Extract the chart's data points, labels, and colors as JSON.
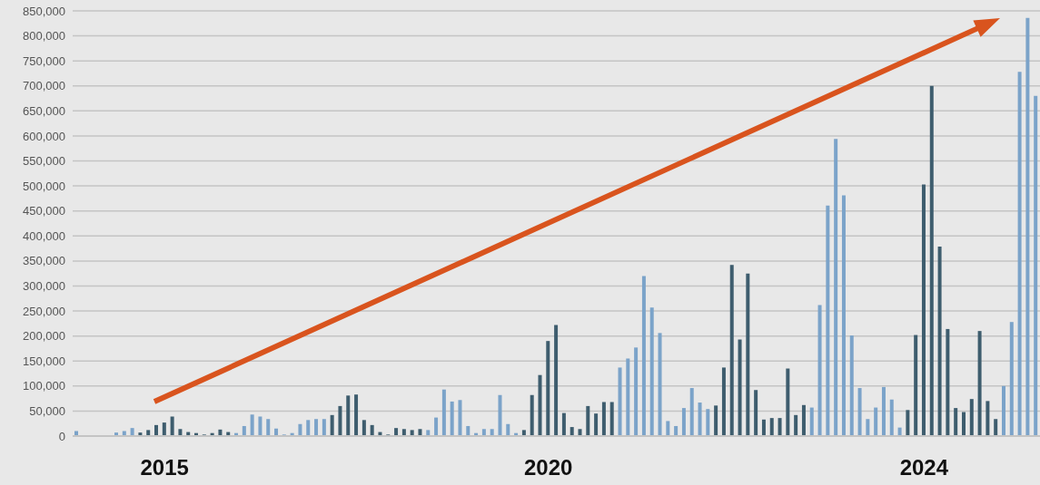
{
  "chart_data": {
    "type": "bar",
    "categories": [
      null,
      null,
      null,
      null,
      null,
      null,
      null,
      null,
      null,
      null,
      null,
      "2015",
      null,
      null,
      null,
      null,
      null,
      null,
      null,
      null,
      null,
      null,
      null,
      null,
      null,
      null,
      null,
      null,
      null,
      null,
      null,
      null,
      null,
      null,
      null,
      null,
      null,
      null,
      null,
      null,
      null,
      null,
      null,
      null,
      null,
      null,
      null,
      null,
      null,
      null,
      null,
      null,
      null,
      null,
      null,
      null,
      null,
      null,
      null,
      "2020",
      null,
      null,
      null,
      null,
      null,
      null,
      null,
      null,
      null,
      null,
      null,
      null,
      null,
      null,
      null,
      null,
      null,
      null,
      null,
      null,
      null,
      null,
      null,
      null,
      null,
      null,
      null,
      null,
      null,
      null,
      null,
      null,
      null,
      null,
      null,
      null,
      null,
      null,
      null,
      null,
      null,
      null,
      null,
      null,
      null,
      null,
      "2024",
      null,
      null,
      null,
      null,
      null,
      null,
      null,
      null,
      null,
      null,
      null,
      null,
      null,
      null
    ],
    "values": [
      10000,
      0,
      0,
      0,
      0,
      7000,
      10000,
      16000,
      7000,
      12000,
      22000,
      27000,
      39000,
      14000,
      8000,
      6000,
      3000,
      6000,
      13000,
      8000,
      6000,
      20000,
      43000,
      39000,
      34000,
      15000,
      3000,
      6000,
      24000,
      32000,
      34000,
      34000,
      42000,
      60000,
      81000,
      83000,
      32000,
      22000,
      8000,
      3000,
      16000,
      14000,
      12000,
      14000,
      12000,
      37000,
      93000,
      69000,
      72000,
      20000,
      6000,
      14000,
      14000,
      82000,
      24000,
      6000,
      12000,
      82000,
      122000,
      190000,
      222000,
      46000,
      18000,
      14000,
      60000,
      45000,
      68000,
      68000,
      137000,
      155000,
      177000,
      320000,
      257000,
      206000,
      30000,
      20000,
      56000,
      96000,
      67000,
      54000,
      61000,
      137000,
      342000,
      193000,
      325000,
      92000,
      33000,
      36000,
      36000,
      135000,
      42000,
      62000,
      57000,
      262000,
      461000,
      594000,
      481000,
      201000,
      96000,
      34000,
      57000,
      98000,
      73000,
      17000,
      52000,
      202000,
      503000,
      700000,
      379000,
      214000,
      56000,
      48000,
      74000,
      210000,
      70000,
      34000,
      100000,
      228000,
      728000,
      836000,
      680000
    ],
    "colors": [
      "#7ba3c9",
      "#7ba3c9",
      "#7ba3c9",
      "#7ba3c9",
      "#7ba3c9",
      "#7ba3c9",
      "#7ba3c9",
      "#7ba3c9",
      "#3e5d6e",
      "#3e5d6e",
      "#3e5d6e",
      "#3e5d6e",
      "#3e5d6e",
      "#3e5d6e",
      "#3e5d6e",
      "#3e5d6e",
      "#3e5d6e",
      "#3e5d6e",
      "#3e5d6e",
      "#3e5d6e",
      "#7ba3c9",
      "#7ba3c9",
      "#7ba3c9",
      "#7ba3c9",
      "#7ba3c9",
      "#7ba3c9",
      "#7ba3c9",
      "#7ba3c9",
      "#7ba3c9",
      "#7ba3c9",
      "#7ba3c9",
      "#7ba3c9",
      "#3e5d6e",
      "#3e5d6e",
      "#3e5d6e",
      "#3e5d6e",
      "#3e5d6e",
      "#3e5d6e",
      "#3e5d6e",
      "#3e5d6e",
      "#3e5d6e",
      "#3e5d6e",
      "#3e5d6e",
      "#3e5d6e",
      "#7ba3c9",
      "#7ba3c9",
      "#7ba3c9",
      "#7ba3c9",
      "#7ba3c9",
      "#7ba3c9",
      "#7ba3c9",
      "#7ba3c9",
      "#7ba3c9",
      "#7ba3c9",
      "#7ba3c9",
      "#7ba3c9",
      "#3e5d6e",
      "#3e5d6e",
      "#3e5d6e",
      "#3e5d6e",
      "#3e5d6e",
      "#3e5d6e",
      "#3e5d6e",
      "#3e5d6e",
      "#3e5d6e",
      "#3e5d6e",
      "#3e5d6e",
      "#3e5d6e",
      "#7ba3c9",
      "#7ba3c9",
      "#7ba3c9",
      "#7ba3c9",
      "#7ba3c9",
      "#7ba3c9",
      "#7ba3c9",
      "#7ba3c9",
      "#7ba3c9",
      "#7ba3c9",
      "#7ba3c9",
      "#7ba3c9",
      "#3e5d6e",
      "#3e5d6e",
      "#3e5d6e",
      "#3e5d6e",
      "#3e5d6e",
      "#3e5d6e",
      "#3e5d6e",
      "#3e5d6e",
      "#3e5d6e",
      "#3e5d6e",
      "#3e5d6e",
      "#3e5d6e",
      "#7ba3c9",
      "#7ba3c9",
      "#7ba3c9",
      "#7ba3c9",
      "#7ba3c9",
      "#7ba3c9",
      "#7ba3c9",
      "#7ba3c9",
      "#7ba3c9",
      "#7ba3c9",
      "#7ba3c9",
      "#7ba3c9",
      "#3e5d6e",
      "#3e5d6e",
      "#3e5d6e",
      "#3e5d6e",
      "#3e5d6e",
      "#3e5d6e",
      "#3e5d6e",
      "#3e5d6e",
      "#3e5d6e",
      "#3e5d6e",
      "#3e5d6e",
      "#3e5d6e",
      "#7ba3c9",
      "#7ba3c9",
      "#7ba3c9",
      "#7ba3c9",
      "#7ba3c9"
    ],
    "ylim": [
      0,
      850000
    ],
    "yticks": [
      0,
      {
        "value": 50000,
        "label": "50,000"
      },
      {
        "value": 100000,
        "label": "100,000"
      },
      {
        "value": 150000,
        "label": "150,000"
      },
      {
        "value": 200000,
        "label": "200,000"
      },
      {
        "value": 250000,
        "label": "250,000"
      },
      {
        "value": 300000,
        "label": "300,000"
      },
      {
        "value": 350000,
        "label": "350,000"
      },
      {
        "value": 400000,
        "label": "400,000"
      },
      {
        "value": 450000,
        "label": "450,000"
      },
      {
        "value": 500000,
        "label": "500,000"
      },
      {
        "value": 550000,
        "label": "550,000"
      },
      {
        "value": 600000,
        "label": "600,000"
      },
      {
        "value": 650000,
        "label": "650,000"
      },
      {
        "value": 700000,
        "label": "700,000"
      },
      {
        "value": 750000,
        "label": "750,000"
      },
      {
        "value": 800000,
        "label": "800,000"
      },
      {
        "value": 850000,
        "label": "850,000"
      }
    ],
    "grid": "y"
  }
}
